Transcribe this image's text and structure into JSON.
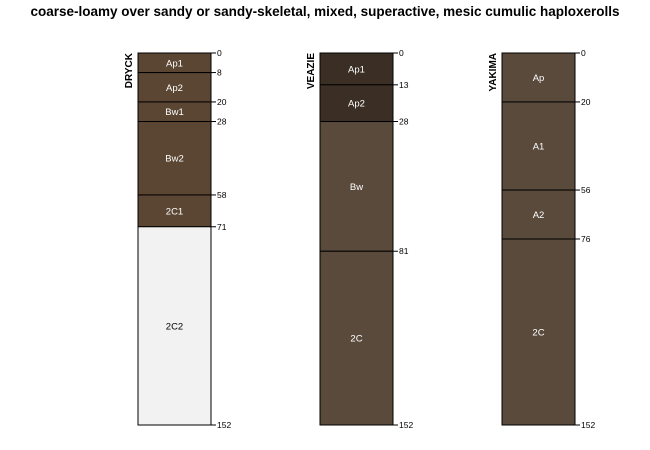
{
  "title": "coarse-loamy over sandy or sandy-skeletal, mixed, superactive, mesic cumulic haploxerolls",
  "depth_max": 152,
  "profiles": [
    {
      "name": "DRYCK",
      "horizons": [
        {
          "name": "Ap1",
          "top": 0,
          "bottom": 8,
          "color": "#5a4632",
          "text_color": "#ffffff"
        },
        {
          "name": "Ap2",
          "top": 8,
          "bottom": 20,
          "color": "#5a4632",
          "text_color": "#ffffff"
        },
        {
          "name": "Bw1",
          "top": 20,
          "bottom": 28,
          "color": "#5a4632",
          "text_color": "#ffffff"
        },
        {
          "name": "Bw2",
          "top": 28,
          "bottom": 58,
          "color": "#5a4632",
          "text_color": "#ffffff"
        },
        {
          "name": "2C1",
          "top": 58,
          "bottom": 71,
          "color": "#5a4632",
          "text_color": "#ffffff"
        },
        {
          "name": "2C2",
          "top": 71,
          "bottom": 152,
          "color": "#f2f2f2",
          "text_color": "#000000"
        }
      ]
    },
    {
      "name": "VEAZIE",
      "horizons": [
        {
          "name": "Ap1",
          "top": 0,
          "bottom": 13,
          "color": "#3b2f25",
          "text_color": "#ffffff"
        },
        {
          "name": "Ap2",
          "top": 13,
          "bottom": 28,
          "color": "#3b2f25",
          "text_color": "#ffffff"
        },
        {
          "name": "Bw",
          "top": 28,
          "bottom": 81,
          "color": "#594a3c",
          "text_color": "#ffffff"
        },
        {
          "name": "2C",
          "top": 81,
          "bottom": 152,
          "color": "#594a3c",
          "text_color": "#ffffff"
        }
      ]
    },
    {
      "name": "YAKIMA",
      "horizons": [
        {
          "name": "Ap",
          "top": 0,
          "bottom": 20,
          "color": "#594a3c",
          "text_color": "#ffffff"
        },
        {
          "name": "A1",
          "top": 20,
          "bottom": 56,
          "color": "#594a3c",
          "text_color": "#ffffff"
        },
        {
          "name": "A2",
          "top": 56,
          "bottom": 76,
          "color": "#594a3c",
          "text_color": "#ffffff"
        },
        {
          "name": "2C",
          "top": 76,
          "bottom": 152,
          "color": "#594a3c",
          "text_color": "#ffffff"
        }
      ]
    }
  ]
}
